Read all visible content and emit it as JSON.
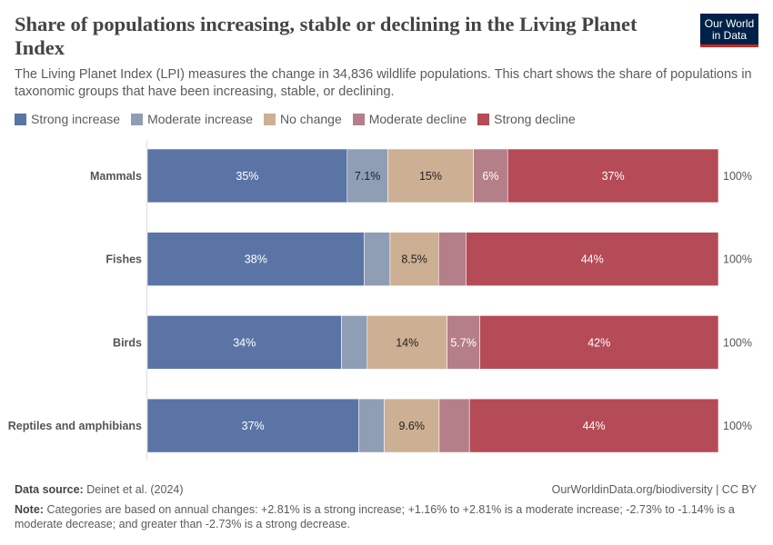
{
  "header": {
    "title": "Share of populations increasing, stable or declining in the Living Planet Index",
    "subtitle": "The Living Planet Index (LPI) measures the change in 34,836 wildlife populations. This chart shows the share of populations in taxonomic groups that have been increasing, stable, or declining.",
    "logo_text": "Our World in Data"
  },
  "chart_data": {
    "type": "bar",
    "orientation": "horizontal",
    "stacked": true,
    "categories": [
      "Mammals",
      "Fishes",
      "Birds",
      "Reptiles and amphibians"
    ],
    "totals_label": [
      "100%",
      "100%",
      "100%",
      "100%"
    ],
    "xlim": [
      0,
      100
    ],
    "legend_position": "top-left",
    "series": [
      {
        "name": "Strong increase",
        "color": "#5a75a5",
        "values": [
          35,
          38,
          34,
          37
        ],
        "labels": [
          "35%",
          "38%",
          "34%",
          "37%"
        ],
        "label_color": "#ffffff"
      },
      {
        "name": "Moderate increase",
        "color": "#8f9db5",
        "values": [
          7.1,
          4.5,
          4.5,
          4.5
        ],
        "labels": [
          "7.1%",
          null,
          null,
          null
        ],
        "label_color": "#222222"
      },
      {
        "name": "No change",
        "color": "#cdaf94",
        "values": [
          15,
          8.5,
          14,
          9.6
        ],
        "labels": [
          "15%",
          "8.5%",
          "14%",
          "9.6%"
        ],
        "label_color": "#222222"
      },
      {
        "name": "Moderate decline",
        "color": "#b47f88",
        "values": [
          6,
          4.8,
          5.7,
          5.3
        ],
        "labels": [
          "6%",
          null,
          "5.7%",
          null
        ],
        "label_color": "#ffffff"
      },
      {
        "name": "Strong decline",
        "color": "#b54b56",
        "values": [
          36.9,
          44.2,
          41.8,
          43.6
        ],
        "labels": [
          "37%",
          "44%",
          "42%",
          "44%"
        ],
        "label_color": "#ffffff"
      }
    ]
  },
  "footer": {
    "source_label": "Data source:",
    "source": "Deinet et al. (2024)",
    "url": "OurWorldinData.org/biodiversity | CC BY",
    "note_label": "Note:",
    "note": "Categories are based on annual changes: +2.81% is a strong increase; +1.16% to +2.81% is a moderate increase; -2.73% to -1.14% is a moderate decrease; and greater than -2.73% is a strong decrease."
  }
}
